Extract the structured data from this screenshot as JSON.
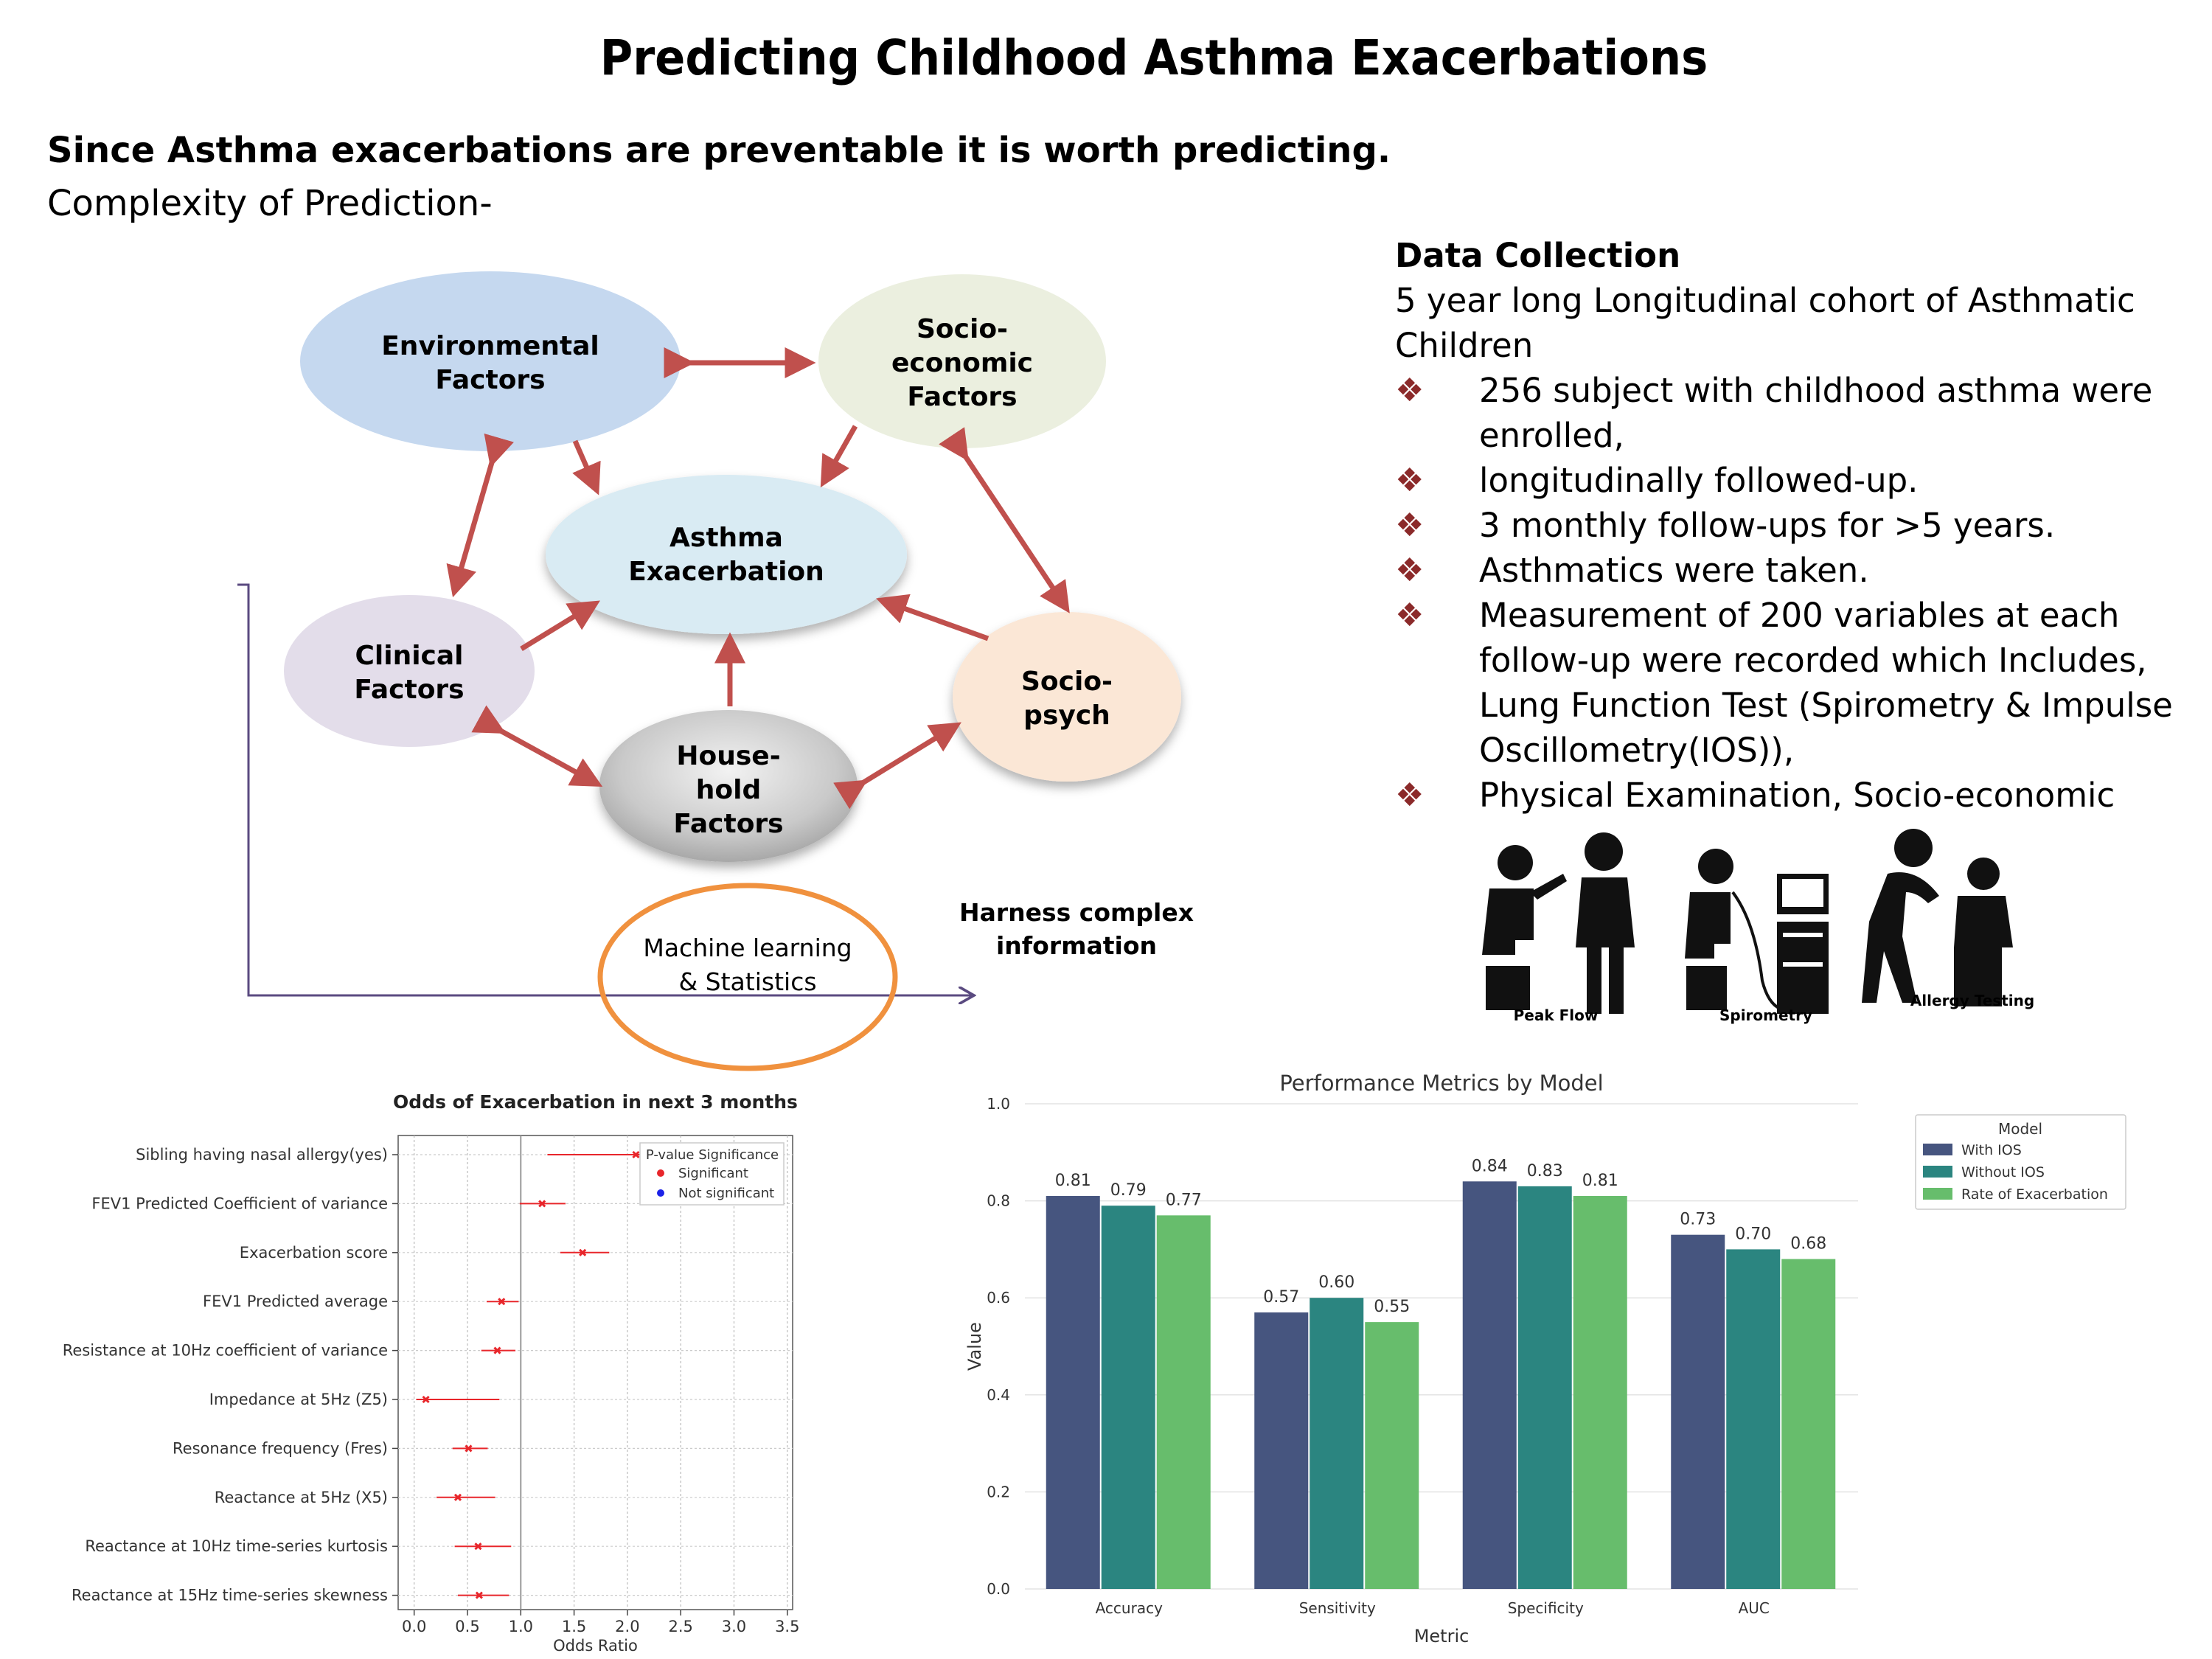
{
  "title": "Predicting Childhood Asthma Exacerbations",
  "intro": {
    "line1": "Since Asthma exacerbations are preventable it is worth predicting.",
    "line2": "Complexity of Prediction-"
  },
  "diagram": {
    "environmental": "Environmental Factors",
    "socioeconomic": "Socio-economic Factors",
    "asthma": "Asthma Exacerbation",
    "clinical": "Clinical Factors",
    "sociopsych": "Socio-psych",
    "household": "House-hold Factors",
    "ml": "Machine learning & Statistics",
    "harness": "Harness complex information"
  },
  "data_collection": {
    "heading": "Data Collection",
    "subheading": "5 year long Longitudinal cohort of Asthmatic Children",
    "bullets": [
      "256 subject with childhood asthma were enrolled,",
      "longitudinally followed-up.",
      "3 monthly follow-ups for >5 years.",
      "Asthmatics were taken.",
      "Measurement of 200 variables  at each follow-up were recorded which Includes, Lung Function Test (Spirometry & Impulse Oscillometry(IOS)),",
      "Physical Examination, Socio-economic"
    ],
    "bullet_glyph": "❖",
    "pictograms": [
      "Peak Flow",
      "Spirometry",
      "Allergy Testing"
    ]
  },
  "chart_data": [
    {
      "type": "scatter",
      "title": "Odds of Exacerbation in next 3 months",
      "xlabel": "Odds Ratio",
      "xlim": [
        -0.15,
        3.55
      ],
      "xticks": [
        "0.0",
        "0.5",
        "1.0",
        "1.5",
        "2.0",
        "2.5",
        "3.0",
        "3.5"
      ],
      "reference_line": 1.0,
      "legend": {
        "title": "P-value Significance",
        "entries": [
          {
            "label": "Significant",
            "color": "#e8262b"
          },
          {
            "label": "Not significant",
            "color": "#1c22e8"
          }
        ],
        "placement": "top-right"
      },
      "grid": true,
      "rows": [
        {
          "label": "Sibling having nasal allergy(yes)",
          "or": 2.08,
          "lo": 1.25,
          "hi": 2.15
        },
        {
          "label": "FEV1 Predicted Coefficient of variance",
          "or": 1.2,
          "lo": 0.99,
          "hi": 1.42
        },
        {
          "label": "Exacerbation score",
          "or": 1.58,
          "lo": 1.37,
          "hi": 1.83
        },
        {
          "label": "FEV1 Predicted average",
          "or": 0.82,
          "lo": 0.68,
          "hi": 0.98
        },
        {
          "label": "Resistance at 10Hz coefficient of variance",
          "or": 0.78,
          "lo": 0.63,
          "hi": 0.95
        },
        {
          "label": "Impedance at 5Hz (Z5)",
          "or": 0.11,
          "lo": 0.02,
          "hi": 0.8
        },
        {
          "label": "Resonance frequency (Fres)",
          "or": 0.51,
          "lo": 0.36,
          "hi": 0.69
        },
        {
          "label": "Reactance at 5Hz (X5)",
          "or": 0.41,
          "lo": 0.21,
          "hi": 0.76
        },
        {
          "label": "Reactance at 10Hz time-series kurtosis",
          "or": 0.6,
          "lo": 0.38,
          "hi": 0.91
        },
        {
          "label": "Reactance at 15Hz  time-series skewness",
          "or": 0.61,
          "lo": 0.41,
          "hi": 0.89
        }
      ]
    },
    {
      "type": "bar",
      "title": "Performance Metrics by Model",
      "xlabel": "Metric",
      "ylabel": "Value",
      "ylim": [
        0,
        1.0
      ],
      "yticks": [
        "0.0",
        "0.2",
        "0.4",
        "0.6",
        "0.8",
        "1.0"
      ],
      "categories": [
        "Accuracy",
        "Sensitivity",
        "Specificity",
        "AUC"
      ],
      "legend_title": "Model",
      "legend_placement": "top-right",
      "grid": true,
      "series": [
        {
          "name": "With IOS",
          "color": "#46557f",
          "values": [
            0.81,
            0.57,
            0.84,
            0.73
          ],
          "labels": [
            "0.81",
            "0.57",
            "0.84",
            "0.73"
          ]
        },
        {
          "name": "Without IOS",
          "color": "#2b8580",
          "values": [
            0.79,
            0.6,
            0.83,
            0.7
          ],
          "labels": [
            "0.79",
            "0.60",
            "0.83",
            "0.70"
          ]
        },
        {
          "name": "Rate of Exacerbation",
          "color": "#67bd6c",
          "values": [
            0.77,
            0.55,
            0.81,
            0.68
          ],
          "labels": [
            "0.77",
            "0.55",
            "0.81",
            "0.68"
          ]
        }
      ]
    }
  ]
}
